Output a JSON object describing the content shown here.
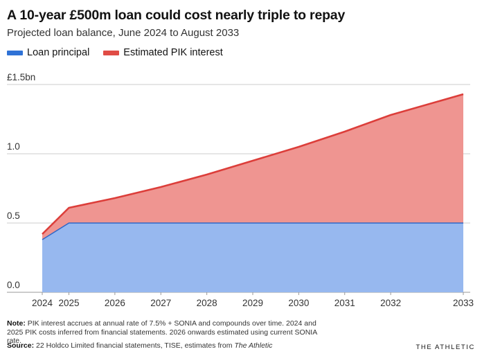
{
  "header": {
    "title": "A 10-year £500m loan could cost nearly triple to repay",
    "subtitle": "Projected loan balance, June 2024 to August 2033"
  },
  "legend": {
    "principal_label": "Loan principal",
    "interest_label": "Estimated PIK interest"
  },
  "colors": {
    "principal_fill": "#97b8ef",
    "principal_line": "#2f68c8",
    "principal_swatch": "#2f72d6",
    "interest_fill": "#ef9591",
    "interest_line": "#dc3e3a",
    "interest_swatch": "#e04c45",
    "grid": "#cccccc",
    "axis": "#999999"
  },
  "chart_data": {
    "type": "area",
    "stacked": true,
    "x": [
      2024.42,
      2025,
      2026,
      2027,
      2028,
      2029,
      2030,
      2031,
      2032,
      2033.58
    ],
    "xlim": [
      2024.42,
      2033.58
    ],
    "x_ticks": [
      "2024",
      "2025",
      "2026",
      "2027",
      "2028",
      "2029",
      "2030",
      "2031",
      "2032",
      "2033"
    ],
    "y_ticks": [
      "0.0",
      "0.5",
      "1.0",
      "£1.5bn"
    ],
    "y_tick_values": [
      0,
      0.5,
      1.0,
      1.5
    ],
    "ylim": [
      0,
      1.5
    ],
    "grid": true,
    "legend_position": "top-left",
    "series": [
      {
        "name": "Loan principal",
        "values": [
          0.38,
          0.5,
          0.5,
          0.5,
          0.5,
          0.5,
          0.5,
          0.5,
          0.5,
          0.5
        ]
      },
      {
        "name": "Estimated PIK interest",
        "values": [
          0.04,
          0.11,
          0.18,
          0.26,
          0.35,
          0.45,
          0.55,
          0.66,
          0.78,
          0.93
        ]
      }
    ],
    "totals": [
      0.42,
      0.61,
      0.68,
      0.76,
      0.85,
      0.95,
      1.05,
      1.16,
      1.28,
      1.43
    ]
  },
  "footer": {
    "note_label": "Note:",
    "note_text": "PIK interest accrues at annual rate of 7.5% + SONIA and compounds over time. 2024 and 2025 PIK costs inferred from financial statements. 2026 onwards estimated using current SONIA rate.",
    "source_label": "Source:",
    "source_text": "22 Holdco Limited financial statements, TISE, estimates from ",
    "source_publication": "The Athletic",
    "brand": "THE ATHLETIC"
  }
}
